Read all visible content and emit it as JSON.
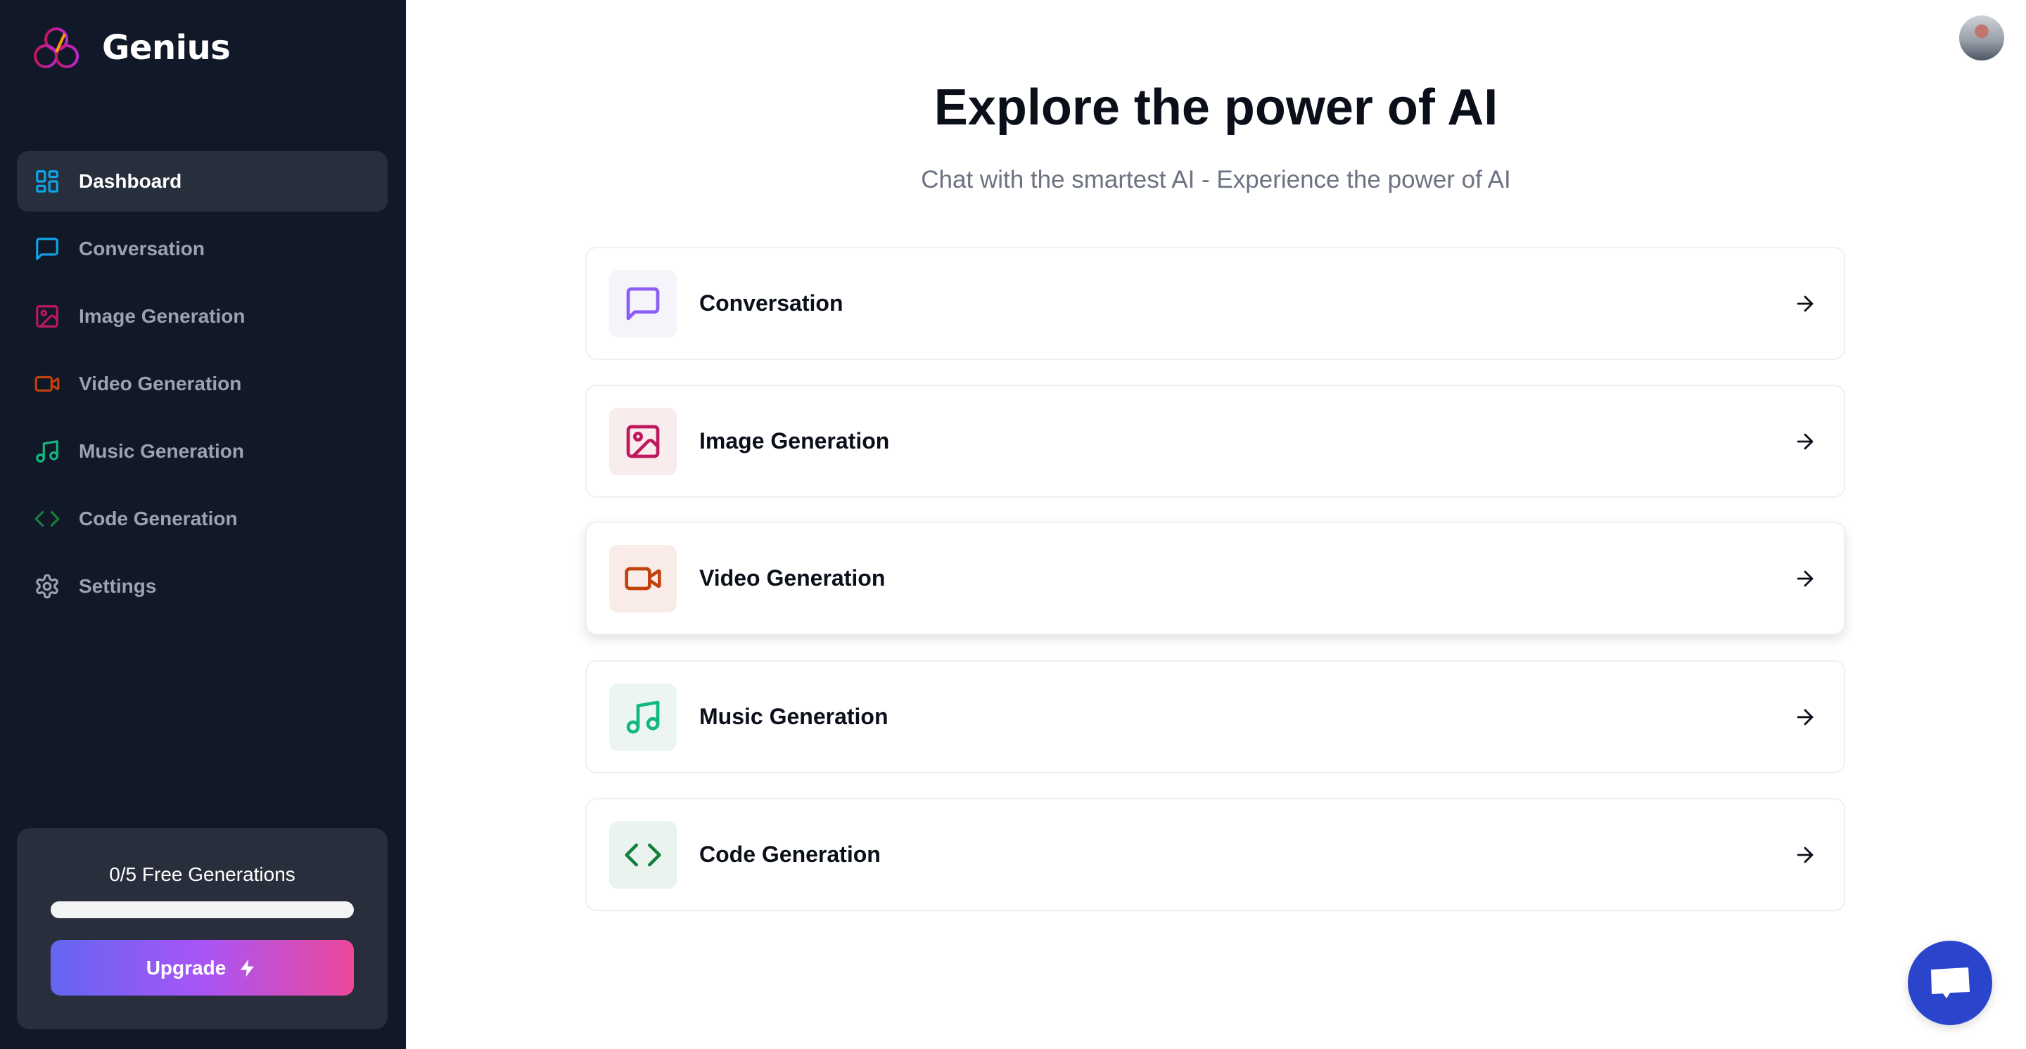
{
  "sidebar": {
    "brand": "Genius",
    "items": [
      {
        "label": "Dashboard",
        "icon": "layout-dashboard-icon",
        "color": "#0ea5e9",
        "active": true
      },
      {
        "label": "Conversation",
        "icon": "message-square-icon",
        "color": "#0ea5e9"
      },
      {
        "label": "Image Generation",
        "icon": "image-icon",
        "color": "#be185d"
      },
      {
        "label": "Video Generation",
        "icon": "video-icon",
        "color": "#c2410c"
      },
      {
        "label": "Music Generation",
        "icon": "music-icon",
        "color": "#10b981"
      },
      {
        "label": "Code Generation",
        "icon": "code-icon",
        "color": "#15803d"
      },
      {
        "label": "Settings",
        "icon": "settings-icon",
        "color": "#9ca3af"
      }
    ],
    "limit": {
      "text": "0/5 Free Generations",
      "used": 0,
      "max": 5,
      "upgrade_label": "Upgrade"
    }
  },
  "main": {
    "title": "Explore the power of AI",
    "subtitle": "Chat with the smartest AI - Experience the power of AI",
    "tools": [
      {
        "label": "Conversation",
        "icon": "message-square-icon",
        "color": "#8b5cf6",
        "bg": "#f5f4fa"
      },
      {
        "label": "Image Generation",
        "icon": "image-icon",
        "color": "#be185d",
        "bg": "#f9ecec"
      },
      {
        "label": "Video Generation",
        "icon": "video-icon",
        "color": "#c2410c",
        "bg": "#f9ebe7"
      },
      {
        "label": "Music Generation",
        "icon": "music-icon",
        "color": "#10b981",
        "bg": "#edf5f0"
      },
      {
        "label": "Code Generation",
        "icon": "code-icon",
        "color": "#15803d",
        "bg": "#eaf3ee"
      }
    ]
  }
}
